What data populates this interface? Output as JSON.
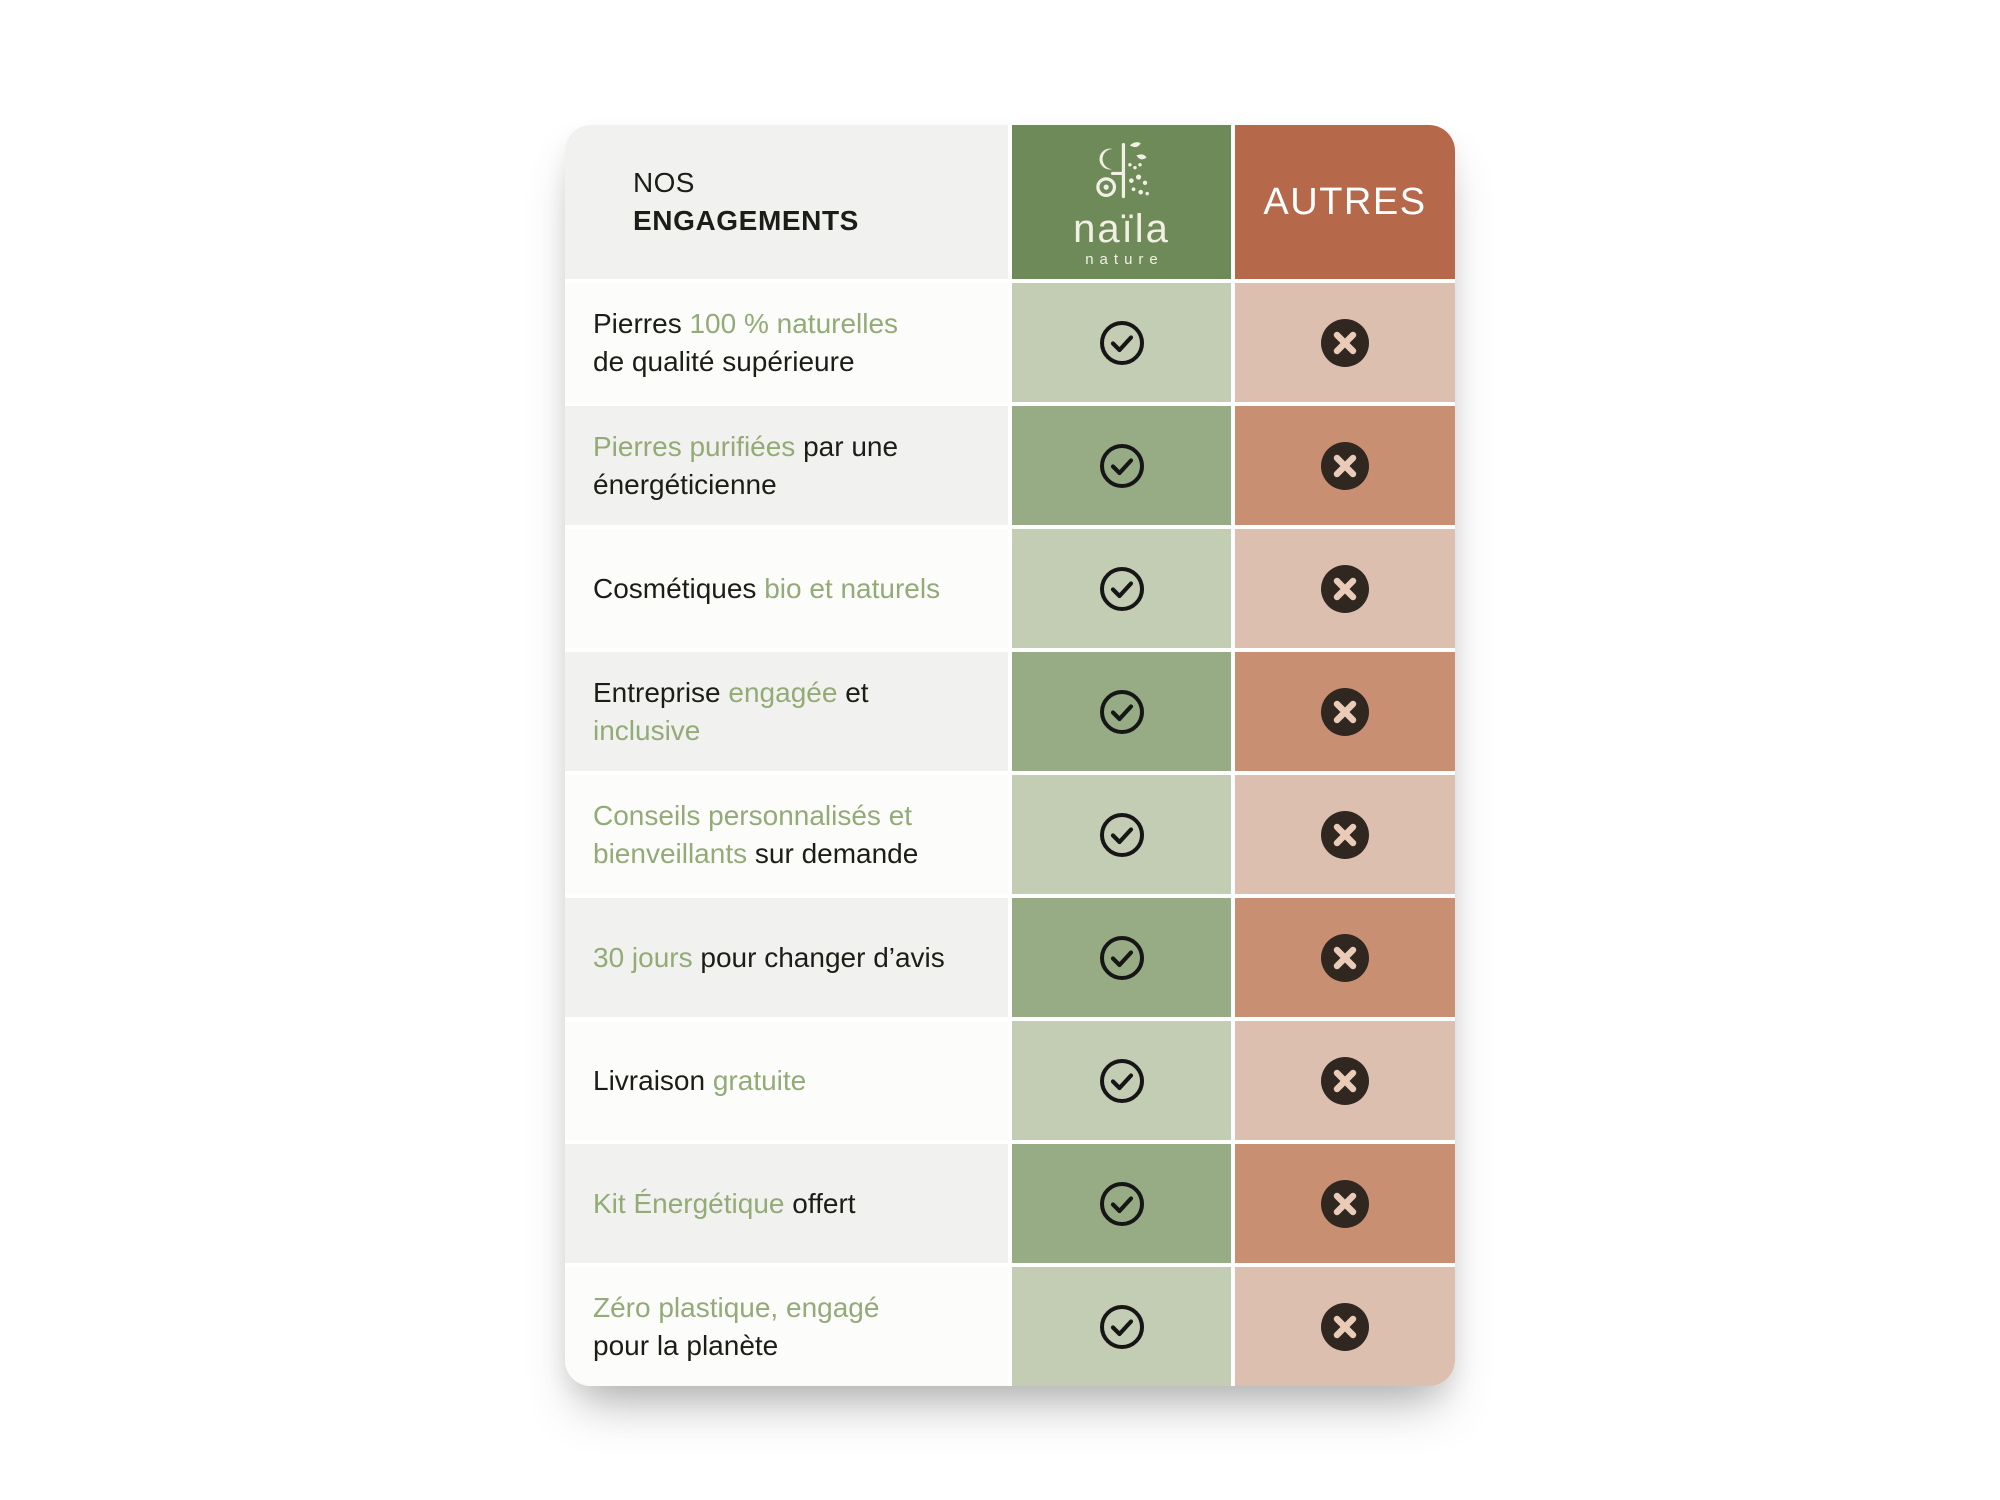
{
  "header": {
    "left_line1": "NOS",
    "left_line2": "ENGAGEMENTS",
    "others_label": "AUTRES"
  },
  "brand": {
    "name": "naïla",
    "tagline": "nature",
    "logo_icon": "naila-nature-logo-icon"
  },
  "icons": {
    "brand_yes": "check-circle-icon",
    "others_no": "cross-circle-icon"
  },
  "colors": {
    "brand-header-bg": "#6f8a59",
    "others-header-bg": "#b5694a",
    "brand-cell-light": "#c3cdb3",
    "brand-cell-dark": "#97ab85",
    "others-cell-light": "#ddbfb0",
    "others-cell-dark": "#c98f73",
    "label-cell-light": "#fcfcfb",
    "label-cell-dark": "#f1f1ef",
    "text-dark": "#1d1d18",
    "text-green": "#92ab77",
    "check-stroke": "#161616",
    "cross-bg": "#2f2720",
    "cross-glyph": "#e9cbb7",
    "logo-cream": "#f2f0e4"
  },
  "rows": [
    {
      "shade": "light",
      "label_lines": [
        [
          {
            "text": "Pierres ",
            "style": "dark"
          },
          {
            "text": "100 % naturelles",
            "style": "green"
          }
        ],
        [
          {
            "text": "de qualité supérieure",
            "style": "dark"
          }
        ]
      ],
      "brand_icon": "check-circle-icon",
      "others_icon": "cross-circle-icon"
    },
    {
      "shade": "dark",
      "label_lines": [
        [
          {
            "text": "Pierres purifiées",
            "style": "green"
          },
          {
            "text": " par une",
            "style": "dark"
          }
        ],
        [
          {
            "text": "énergéticienne",
            "style": "dark"
          }
        ]
      ],
      "brand_icon": "check-circle-icon",
      "others_icon": "cross-circle-icon"
    },
    {
      "shade": "light",
      "label_lines": [
        [
          {
            "text": "Cosmétiques ",
            "style": "dark"
          },
          {
            "text": "bio et naturels",
            "style": "green"
          }
        ]
      ],
      "brand_icon": "check-circle-icon",
      "others_icon": "cross-circle-icon"
    },
    {
      "shade": "dark",
      "label_lines": [
        [
          {
            "text": "Entreprise ",
            "style": "dark"
          },
          {
            "text": "engagée",
            "style": "green"
          },
          {
            "text": " et",
            "style": "dark"
          }
        ],
        [
          {
            "text": "inclusive",
            "style": "green"
          }
        ]
      ],
      "brand_icon": "check-circle-icon",
      "others_icon": "cross-circle-icon"
    },
    {
      "shade": "light",
      "label_lines": [
        [
          {
            "text": "Conseils personnalisés et",
            "style": "green"
          }
        ],
        [
          {
            "text": "bienveillants",
            "style": "green"
          },
          {
            "text": " sur demande",
            "style": "dark"
          }
        ]
      ],
      "brand_icon": "check-circle-icon",
      "others_icon": "cross-circle-icon"
    },
    {
      "shade": "dark",
      "label_lines": [
        [
          {
            "text": "30 jours",
            "style": "green"
          },
          {
            "text": " pour changer d’avis",
            "style": "dark"
          }
        ]
      ],
      "brand_icon": "check-circle-icon",
      "others_icon": "cross-circle-icon"
    },
    {
      "shade": "light",
      "label_lines": [
        [
          {
            "text": "Livraison ",
            "style": "dark"
          },
          {
            "text": "gratuite",
            "style": "green"
          }
        ]
      ],
      "brand_icon": "check-circle-icon",
      "others_icon": "cross-circle-icon"
    },
    {
      "shade": "dark",
      "label_lines": [
        [
          {
            "text": "Kit Énergétique",
            "style": "green"
          },
          {
            "text": " offert",
            "style": "dark"
          }
        ]
      ],
      "brand_icon": "check-circle-icon",
      "others_icon": "cross-circle-icon"
    },
    {
      "shade": "light",
      "label_lines": [
        [
          {
            "text": "Zéro plastique, engagé",
            "style": "green"
          }
        ],
        [
          {
            "text": "pour la planète",
            "style": "dark"
          }
        ]
      ],
      "brand_icon": "check-circle-icon",
      "others_icon": "cross-circle-icon"
    }
  ],
  "chart_data": {
    "type": "table",
    "title": "NOS ENGAGEMENTS",
    "columns": [
      "NOS ENGAGEMENTS",
      "naïla nature",
      "AUTRES"
    ],
    "rows": [
      [
        "Pierres 100 % naturelles de qualité supérieure",
        true,
        false
      ],
      [
        "Pierres purifiées par une énergéticienne",
        true,
        false
      ],
      [
        "Cosmétiques bio et naturels",
        true,
        false
      ],
      [
        "Entreprise engagée et inclusive",
        true,
        false
      ],
      [
        "Conseils personnalisés et bienveillants sur demande",
        true,
        false
      ],
      [
        "30 jours pour changer d’avis",
        true,
        false
      ],
      [
        "Livraison gratuite",
        true,
        false
      ],
      [
        "Kit Énergétique offert",
        true,
        false
      ],
      [
        "Zéro plastique, engagé pour la planète",
        true,
        false
      ]
    ],
    "legend_position": "none",
    "grid": false
  }
}
